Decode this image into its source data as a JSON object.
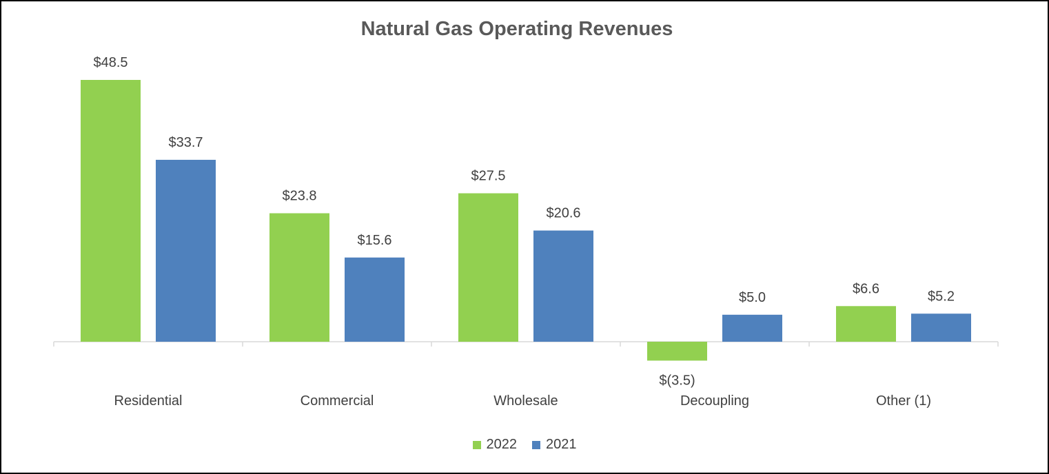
{
  "chart_data": {
    "type": "bar",
    "title": "Natural Gas Operating Revenues",
    "categories": [
      "Residential",
      "Commercial",
      "Wholesale",
      "Decoupling",
      "Other (1)"
    ],
    "series": [
      {
        "name": "2022",
        "color": "#92D050",
        "values": [
          48.5,
          23.8,
          27.5,
          -3.5,
          6.6
        ],
        "labels": [
          "$48.5",
          "$23.8",
          "$27.5",
          "$(3.5)",
          "$6.6"
        ]
      },
      {
        "name": "2021",
        "color": "#4F81BD",
        "values": [
          33.7,
          15.6,
          20.6,
          5.0,
          5.2
        ],
        "labels": [
          "$33.7",
          "$15.6",
          "$20.6",
          "$5.0",
          "$5.2"
        ]
      }
    ],
    "xlabel": "",
    "ylabel": "",
    "ylim": [
      -3.5,
      48.5
    ],
    "grid": false,
    "legend_position": "bottom"
  }
}
